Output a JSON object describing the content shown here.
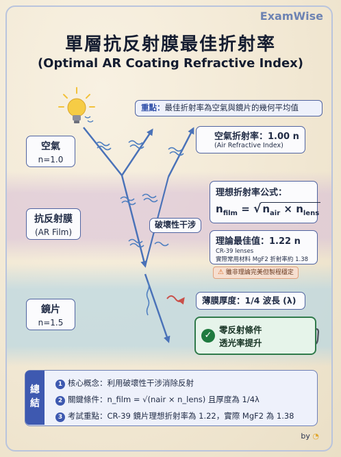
{
  "brand": "ExamWise",
  "title": {
    "zh": "單層抗反射膜最佳折射率",
    "en": "(Optimal AR Coating Refractive Index)"
  },
  "key_point": {
    "label": "重點：",
    "text": "最佳折射率為空氣與鏡片的幾何平均值"
  },
  "layers": {
    "air": {
      "name": "空氣",
      "index": "n=1.0"
    },
    "film": {
      "name": "抗反射膜",
      "en": "(AR Film)"
    },
    "lens": {
      "name": "鏡片",
      "index": "n=1.5"
    }
  },
  "interference_label": "破壞性干涉",
  "air_index": {
    "title": "空氣折射率：1.00 n",
    "en": "(Air Refractive Index)"
  },
  "formula": {
    "title": "理想折射率公式：",
    "lhs": "n",
    "lhs_sub": "film",
    "eq": "=",
    "radical": "√",
    "a": "n",
    "a_sub": "air",
    "times": "×",
    "b": "n",
    "b_sub": "lens"
  },
  "theory": {
    "title": "理論最佳值：1.22 n",
    "line1": "CR-39 lenses",
    "line2": "實際常用材料 MgF2 折射率約 1.38"
  },
  "warning": "雖非理論完美但製程穩定",
  "thickness": "薄膜厚度：1/4 波長 (λ)",
  "zero": {
    "line1": "零反射條件",
    "line2": "透光率提升"
  },
  "summary": {
    "label": "總結",
    "items": [
      {
        "num": "1",
        "text": "核心概念：利用破壞性干涉消除反射"
      },
      {
        "num": "2",
        "text": "關鍵條件：n_film = √(nair × n_lens) 且厚度為 1/4λ"
      },
      {
        "num": "3",
        "text": "考試重點：CR-39 鏡片理想折射率為 1.22，實際 MgF2 為 1.38"
      }
    ]
  },
  "byline": {
    "prefix": "by",
    "mark": "◔"
  },
  "colors": {
    "frame": "#b9c4dd",
    "accent": "#3e59b0",
    "ray": "#4a72b8",
    "wave": "#4f7fc0",
    "thin_wave": "#c9504a",
    "zero_green": "#2f7a4a",
    "bulb": "#f2c23b"
  },
  "icons": [
    "lightbulb-icon",
    "wave-icon",
    "warning-icon",
    "check-icon",
    "glasses-icon"
  ]
}
